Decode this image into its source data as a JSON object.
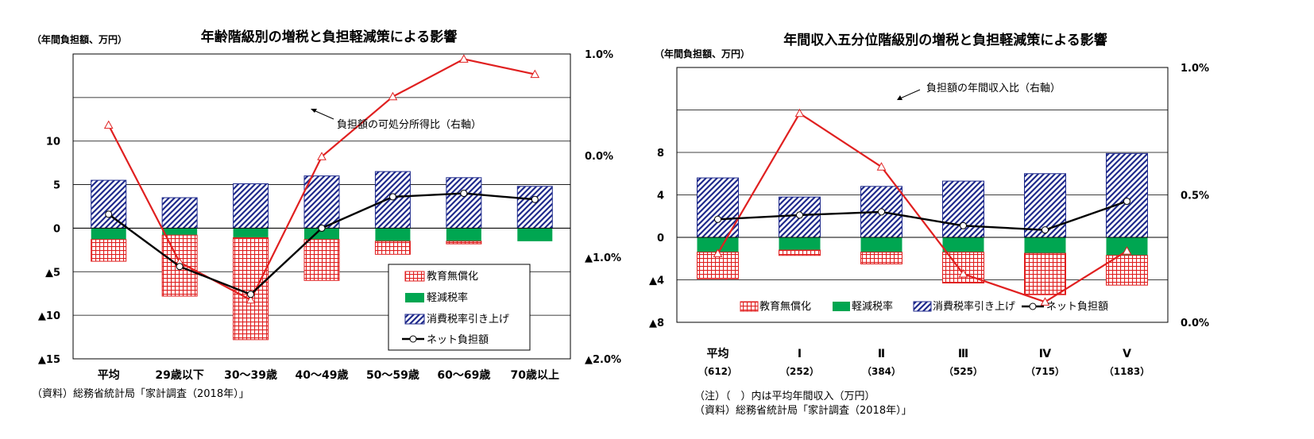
{
  "charts": [
    {
      "title": "年齢階級別の増税と負担軽減策による影響",
      "y_unit": "（年間負担額、万円）",
      "source": "（資料）総務省統計局「家計調査（2018年）」",
      "annotation": "負担額の可処分所得比（右軸）",
      "legend": [
        "教育無償化",
        "軽減税率",
        "消費税率引き上げ",
        "ネット負担額"
      ],
      "y_ticks": [
        {
          "v": 10,
          "label": "10"
        },
        {
          "v": 5,
          "label": "5"
        },
        {
          "v": 0,
          "label": "0"
        },
        {
          "v": -5,
          "label": "▲5"
        },
        {
          "v": -10,
          "label": "▲10"
        },
        {
          "v": -15,
          "label": "▲15"
        }
      ],
      "y2_ticks": [
        {
          "v": 1.0,
          "label": "1.0%"
        },
        {
          "v": 0.0,
          "label": "0.0%"
        },
        {
          "v": -1.0,
          "label": "▲1.0%"
        },
        {
          "v": -2.0,
          "label": "▲2.0%"
        }
      ]
    },
    {
      "title": "年間収入五分位階級別の増税と負担軽減策による影響",
      "y_unit": "（年間負担額、万円）",
      "note": "（注）（　）内は平均年間収入（万円）",
      "source": "（資料）総務省統計局「家計調査（2018年）」",
      "annotation": "負担額の年間収入比（右軸）",
      "legend": [
        "教育無償化",
        "軽減税率",
        "消費税率引き上げ",
        "ネット負担額"
      ],
      "y_ticks": [
        {
          "v": 8,
          "label": "8"
        },
        {
          "v": 4,
          "label": "4"
        },
        {
          "v": 0,
          "label": "0"
        },
        {
          "v": -4,
          "label": "▲4"
        },
        {
          "v": -8,
          "label": "▲8"
        }
      ],
      "y2_ticks": [
        {
          "v": 1.0,
          "label": "1.0%"
        },
        {
          "v": 0.5,
          "label": "0.5%"
        },
        {
          "v": 0.0,
          "label": "0.0%"
        }
      ]
    }
  ],
  "chart_data": [
    {
      "type": "bar",
      "title": "年齢階級別の増税と負担軽減策による影響",
      "ylabel": "（年間負担額、万円）",
      "categories": [
        "平均",
        "29歳以下",
        "30～39歳",
        "40～49歳",
        "50～59歳",
        "60～69歳",
        "70歳以上"
      ],
      "ylim": [
        -15,
        20
      ],
      "y2lim": [
        -2.0,
        1.0
      ],
      "series": [
        {
          "name": "消費税率引き上げ",
          "kind": "bar-stacked",
          "values": [
            5.5,
            3.5,
            5.1,
            6.0,
            6.5,
            5.8,
            4.8
          ]
        },
        {
          "name": "軽減税率",
          "kind": "bar-stacked",
          "values": [
            -1.3,
            -0.8,
            -1.1,
            -1.3,
            -1.5,
            -1.5,
            -1.5
          ]
        },
        {
          "name": "教育無償化",
          "kind": "bar-stacked",
          "values": [
            -2.5,
            -7.0,
            -11.7,
            -4.7,
            -1.5,
            -0.3,
            0.0
          ]
        },
        {
          "name": "ネット負担額",
          "kind": "line",
          "axis": "left",
          "values": [
            1.6,
            -4.4,
            -7.6,
            0.0,
            3.6,
            4.0,
            3.3
          ]
        },
        {
          "name": "負担額の可処分所得比（右軸）",
          "kind": "line",
          "axis": "right",
          "values": [
            0.3,
            -1.05,
            -1.42,
            -0.01,
            0.58,
            0.95,
            0.8
          ]
        }
      ]
    },
    {
      "type": "bar",
      "title": "年間収入五分位階級別の増税と負担軽減策による影響",
      "ylabel": "（年間負担額、万円）",
      "categories": [
        "平均",
        "Ⅰ",
        "Ⅱ",
        "Ⅲ",
        "Ⅳ",
        "Ⅴ"
      ],
      "category_sublabels": [
        "（612）",
        "（252）",
        "（384）",
        "（525）",
        "（715）",
        "（1183）"
      ],
      "ylim": [
        -8,
        16
      ],
      "y2lim": [
        0.0,
        1.0
      ],
      "series": [
        {
          "name": "消費税率引き上げ",
          "kind": "bar-stacked",
          "values": [
            5.6,
            3.8,
            4.8,
            5.3,
            6.0,
            7.9
          ]
        },
        {
          "name": "軽減税率",
          "kind": "bar-stacked",
          "values": [
            -1.4,
            -1.2,
            -1.4,
            -1.4,
            -1.5,
            -1.7
          ]
        },
        {
          "name": "教育無償化",
          "kind": "bar-stacked",
          "values": [
            -2.5,
            -0.5,
            -1.1,
            -2.9,
            -3.9,
            -2.8
          ]
        },
        {
          "name": "ネット負担額",
          "kind": "line",
          "axis": "left",
          "values": [
            1.7,
            2.1,
            2.4,
            1.1,
            0.7,
            3.4
          ]
        },
        {
          "name": "負担額の年間収入比（右軸）",
          "kind": "line",
          "axis": "right",
          "values": [
            0.27,
            0.82,
            0.61,
            0.19,
            0.08,
            0.28
          ]
        }
      ]
    }
  ],
  "colors": {
    "edu": "#e02020",
    "red_bar": "#e02020",
    "green": "#00a651",
    "navy": "#1f2a8c",
    "ratio_line": "#e02020",
    "net_line": "#000000",
    "grid": "#000000"
  }
}
